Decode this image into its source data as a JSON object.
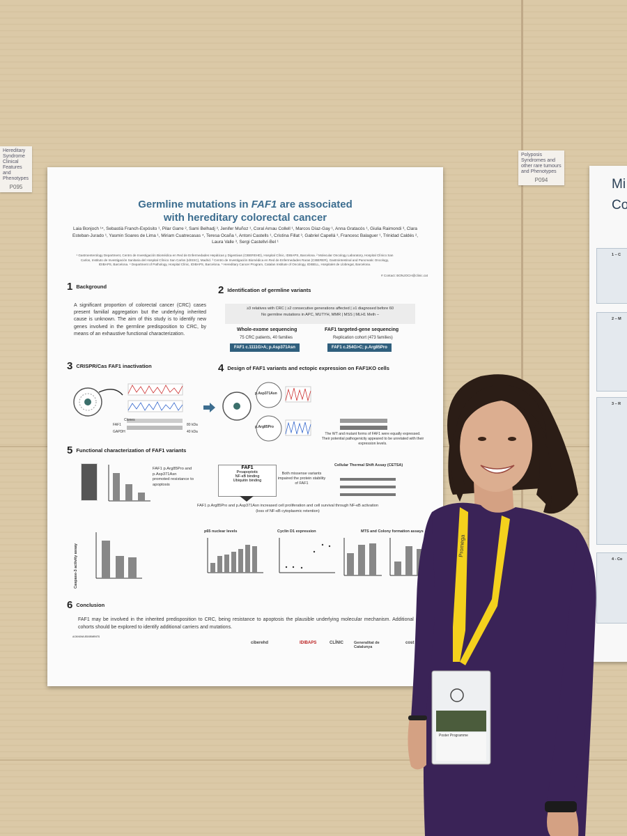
{
  "wall_tags": [
    {
      "text": "Hereditary Syndrome Clinical Features and Phenotypes",
      "code": "P095"
    },
    {
      "text": "Polyposis Syndromes and other rare tumours and Phenotypes",
      "code": "P094"
    }
  ],
  "poster": {
    "title_line1_pre": "Germline mutations in ",
    "title_gene": "FAF1",
    "title_line1_post": " are associated",
    "title_line2": "with hereditary colorectal cancer",
    "authors": "Laia Bonjoch ¹⁴, Sebastià Franch-Expósito ¹, Pilar Garre ², Sami Belhadj ³, Jenifer Muñoz ¹, Coral Arnau Collell ¹, Marcos Díaz-Gay ¹, Anna Gratacós ¹, Giulia Raimondi ³, Clara Esteban-Jurado ¹, Yasmin Soares de Lima ¹, Miriam Cuatrecasas ⁴, Teresa Ocaña ¹, Antoni Castells ¹, Cristina Fillat ³, Gabriel Capellá ³, Francesc Balaguer ¹, Trinidad Caldés ², Laura Valle ³, Sergi Castellví-Bel ¹",
    "affiliations": "¹ Gastroenterology Department, Centro de Investigación Biomédica en Red de Enfermedades Hepáticas y Digestivas (CIBEREHD), Hospital Clínic, IDIBAPS, Barcelona. ² Molecular Oncology Laboratory, Hospital Clínico San Carlos, Instituto de Investigación Sanitaria del Hospital Clínico San Carlos (IdISSC), Madrid. ³ Centro de Investigación Biomédica en Red de Enfermedades Raras (CIBERER), Gastrointestinal and Pancreatic Oncology, IDIBAPS, Barcelona. ⁴ Department of Pathology, Hospital Clínic, IDIBAPS, Barcelona. ⁵ Hereditary Cancer Program, Catalan Institute of Oncology, IDIBELL, Hospitalet de Llobregat, Barcelona.",
    "contact": "# Contact: BONJOCH@clinic.cat",
    "s1": {
      "num": "1",
      "title": "Background",
      "text": "A significant proportion of colorectal cancer (CRC) cases present familial aggregation but the underlying inherited cause is unknown. The aim of this study is to identify new genes involved in the germline predisposition to CRC, by means of an exhaustive functional characterization."
    },
    "s2": {
      "num": "2",
      "title": "Identification of germline variants",
      "criteria1": "≥3 relatives with CRC  |  ≥2 consecutive generations affected  |  ≥1 diagnosed before 60",
      "criteria2": "No germline mutations in APC, MUTYH, MMR  |  MSS  |  MLH1 Meth –",
      "left_h": "Whole-exome sequencing",
      "left_t": "75 CRC patients, 40 families",
      "left_pill": "FAF1 c.1111G>A; p.Asp371Asn",
      "right_h": "FAF1 targeted-gene sequencing",
      "right_t": "Replication cohort (473 families)",
      "right_pill": "FAF1 c.254G>C; p.Arg85Pro"
    },
    "s3": {
      "num": "3",
      "title": "CRISPR/Cas FAF1 inactivation",
      "clones": "Clones",
      "faf1": "FAF1",
      "gapdh": "GAPDH",
      "kda1": "80 kDa",
      "kda2": "40 kDa"
    },
    "s4": {
      "num": "4",
      "title": "Design of FAF1 variants and ectopic expression on FAF1KO cells",
      "note": "The WT and mutant forms of FAF1 were equally expressed. Their potential pathogenicity appeared to be unrelated with their expression levels.",
      "p1": "p.Asp371Asn",
      "p2": "p.Arg85Pro"
    },
    "s5": {
      "num": "5",
      "title": "Functional characterization of FAF1 variants",
      "resist": "FAF1 p.Arg85Pro and p.Asp371Asn promoted resistance to apoptosis",
      "box_title": "FAF1",
      "box_1": "Proapoptotic",
      "box_2": "NF-κB binding",
      "box_3": "Ubiquitin binding",
      "stab": "Both missense variants impaired the protein stability of FAF1",
      "cetsa": "Cellular Thermal Shift Assay (CETSA)",
      "prolif": "FAF1 p.Arg85Pro and p.Asp371Asn increased cell proliferation and cell survival through NF-κB activation (loss of NF-κB cytoplasmic retention)",
      "caspase": "Caspase-3 activity assay",
      "p65": "p65 nuclear levels",
      "cyclin": "Cyclin D1 expression",
      "mts": "MTS and Colony formation assays"
    },
    "s6": {
      "num": "6",
      "title": "Conclusion",
      "text": "FAF1 may be involved in the inherited predisposition to CRC, being resistance to apoptosis the plausible underlying molecular mechanism. Additional CRC cohorts should be explored to identify additional carriers and mutations."
    },
    "ack_title": "ACKNOWLEDGEMENTS",
    "logos": [
      "ciberehd",
      "IDIBAPS",
      "CLÍNIC",
      "Generalitat de Catalunya",
      "cost"
    ]
  },
  "right_poster": {
    "title_line1": "Mi",
    "title_line2": "Co",
    "section_labels": [
      "1 – C",
      "2 – M",
      "3 – R",
      "4 - Co"
    ]
  },
  "badge": {
    "brand": "Promega",
    "label": "Poster Programme"
  }
}
